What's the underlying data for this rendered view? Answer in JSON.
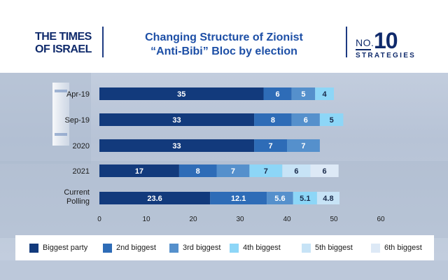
{
  "header": {
    "logo_line1": "THE TIMES",
    "logo_line2": "OF ISRAEL",
    "title_line1": "Changing Structure of Zionist",
    "title_line2": "“Anti-Bibi” Bloc by election",
    "badge_no": "NO.",
    "badge_num": "10",
    "badge_word": "STRATEGIES"
  },
  "colors": {
    "header_bg": "#ffffff",
    "title": "#1d4fa6",
    "dark_navy": "#0f2a6b",
    "segments": [
      "#123a7c",
      "#2e6cb7",
      "#5590cc",
      "#8dd6f7",
      "#c7e3f6",
      "#dde9f6"
    ]
  },
  "chart_data": {
    "type": "bar",
    "orientation": "horizontal",
    "stacked": true,
    "categories": [
      "Apr-19",
      "Sep-19",
      "2020",
      "2021",
      "Current Polling"
    ],
    "series": [
      {
        "name": "Biggest party",
        "values": [
          35,
          33,
          33,
          17,
          23.6
        ],
        "labels": [
          "35",
          "33",
          "33",
          "17",
          "23.6"
        ]
      },
      {
        "name": "2nd biggest",
        "values": [
          6,
          8,
          7,
          8,
          12.1
        ],
        "labels": [
          "6",
          "8",
          "7",
          "8",
          "12.1"
        ]
      },
      {
        "name": "3rd biggest",
        "values": [
          5,
          6,
          7,
          7,
          5.6
        ],
        "labels": [
          "5",
          "6",
          "7",
          "7",
          "5.6"
        ]
      },
      {
        "name": "4th biggest",
        "values": [
          4,
          5,
          null,
          7,
          5.1
        ],
        "labels": [
          "4",
          "5",
          "",
          "7",
          "5.1"
        ]
      },
      {
        "name": "5th biggest",
        "values": [
          null,
          null,
          null,
          6,
          4.8
        ],
        "labels": [
          "",
          "",
          "",
          "6",
          "4.8"
        ]
      },
      {
        "name": "6th biggest",
        "values": [
          null,
          null,
          null,
          6,
          null
        ],
        "labels": [
          "",
          "",
          "",
          "6",
          ""
        ]
      }
    ],
    "x_ticks": [
      "0",
      "10",
      "20",
      "30",
      "40",
      "50",
      "60"
    ],
    "xlim": [
      0,
      60
    ],
    "grid": false,
    "legend_position": "bottom"
  }
}
